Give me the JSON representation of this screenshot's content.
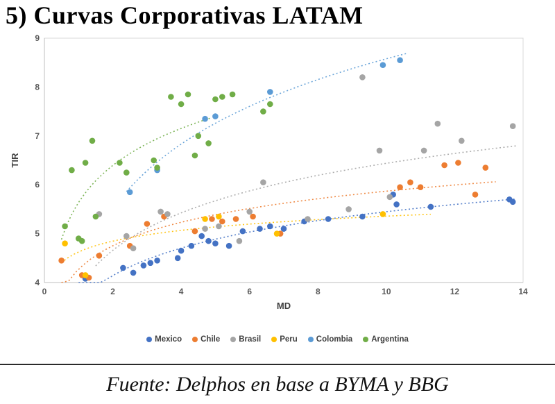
{
  "title": "5) Curvas Corporativas LATAM",
  "footer": "Fuente: Delphos en base a BYMA y BBG",
  "chart_data": {
    "type": "scatter",
    "title": "5) Curvas Corporativas LATAM",
    "xlabel": "MD",
    "ylabel": "TIR",
    "xlim": [
      0,
      14
    ],
    "ylim": [
      4,
      9
    ],
    "x_ticks": [
      0,
      2,
      4,
      6,
      8,
      10,
      12,
      14
    ],
    "y_ticks": [
      4,
      5,
      6,
      7,
      8,
      9
    ],
    "grid": false,
    "legend_position": "bottom",
    "trendlines": "logarithmic-dotted-per-series",
    "series": [
      {
        "name": "Mexico",
        "color": "#4472C4",
        "trend_range": [
          1.0,
          13.8
        ],
        "points": [
          [
            1.2,
            4.08
          ],
          [
            2.3,
            4.3
          ],
          [
            2.6,
            4.2
          ],
          [
            2.9,
            4.35
          ],
          [
            3.1,
            4.4
          ],
          [
            3.3,
            4.45
          ],
          [
            3.9,
            4.5
          ],
          [
            4.0,
            4.65
          ],
          [
            4.3,
            4.75
          ],
          [
            4.6,
            4.95
          ],
          [
            4.8,
            4.85
          ],
          [
            5.0,
            4.8
          ],
          [
            5.4,
            4.75
          ],
          [
            5.8,
            5.05
          ],
          [
            6.3,
            5.1
          ],
          [
            6.6,
            5.15
          ],
          [
            7.0,
            5.1
          ],
          [
            7.6,
            5.25
          ],
          [
            8.3,
            5.3
          ],
          [
            9.3,
            5.35
          ],
          [
            10.2,
            5.8
          ],
          [
            10.3,
            5.6
          ],
          [
            11.3,
            5.55
          ],
          [
            13.6,
            5.7
          ],
          [
            13.7,
            5.65
          ]
        ]
      },
      {
        "name": "Chile",
        "color": "#ED7D31",
        "trend_range": [
          0.5,
          13.2
        ],
        "points": [
          [
            0.5,
            4.45
          ],
          [
            1.1,
            4.15
          ],
          [
            1.3,
            4.1
          ],
          [
            1.6,
            4.55
          ],
          [
            2.5,
            4.75
          ],
          [
            3.0,
            5.2
          ],
          [
            3.5,
            5.35
          ],
          [
            4.4,
            5.05
          ],
          [
            4.9,
            5.3
          ],
          [
            5.2,
            5.25
          ],
          [
            5.6,
            5.3
          ],
          [
            6.1,
            5.35
          ],
          [
            6.9,
            5.0
          ],
          [
            10.4,
            5.95
          ],
          [
            10.7,
            6.05
          ],
          [
            11.0,
            5.95
          ],
          [
            11.7,
            6.4
          ],
          [
            12.1,
            6.45
          ],
          [
            12.6,
            5.8
          ],
          [
            12.9,
            6.35
          ]
        ]
      },
      {
        "name": "Brasil",
        "color": "#A5A5A5",
        "trend_range": [
          1.5,
          13.8
        ],
        "points": [
          [
            1.6,
            5.4
          ],
          [
            2.4,
            4.95
          ],
          [
            2.6,
            4.7
          ],
          [
            3.4,
            5.45
          ],
          [
            3.6,
            5.4
          ],
          [
            4.7,
            5.1
          ],
          [
            5.1,
            5.15
          ],
          [
            5.7,
            4.85
          ],
          [
            6.0,
            5.45
          ],
          [
            6.4,
            6.05
          ],
          [
            7.7,
            5.3
          ],
          [
            8.9,
            5.5
          ],
          [
            9.3,
            8.2
          ],
          [
            9.8,
            6.7
          ],
          [
            10.1,
            5.75
          ],
          [
            11.1,
            6.7
          ],
          [
            11.5,
            7.25
          ],
          [
            12.2,
            6.9
          ],
          [
            13.7,
            7.2
          ]
        ]
      },
      {
        "name": "Peru",
        "color": "#FFC000",
        "trend_range": [
          0.5,
          11.3
        ],
        "points": [
          [
            0.6,
            4.8
          ],
          [
            1.2,
            4.15
          ],
          [
            4.7,
            5.3
          ],
          [
            5.1,
            5.35
          ],
          [
            6.8,
            5.0
          ],
          [
            9.9,
            5.4
          ]
        ]
      },
      {
        "name": "Colombia",
        "color": "#5B9BD5",
        "trend_range": [
          2.4,
          10.6
        ],
        "points": [
          [
            2.5,
            5.85
          ],
          [
            3.3,
            6.3
          ],
          [
            4.7,
            7.35
          ],
          [
            5.0,
            7.4
          ],
          [
            6.6,
            7.9
          ],
          [
            9.9,
            8.45
          ],
          [
            10.4,
            8.55
          ]
        ]
      },
      {
        "name": "Argentina",
        "color": "#70AD47",
        "trend_range": [
          0.5,
          4.9
        ],
        "points": [
          [
            0.6,
            5.15
          ],
          [
            0.8,
            6.3
          ],
          [
            1.0,
            4.9
          ],
          [
            1.1,
            4.85
          ],
          [
            1.2,
            6.45
          ],
          [
            1.4,
            6.9
          ],
          [
            1.5,
            5.35
          ],
          [
            2.2,
            6.45
          ],
          [
            2.4,
            6.25
          ],
          [
            3.2,
            6.5
          ],
          [
            3.3,
            6.35
          ],
          [
            3.7,
            7.8
          ],
          [
            4.0,
            7.65
          ],
          [
            4.2,
            7.85
          ],
          [
            4.4,
            6.6
          ],
          [
            4.5,
            7.0
          ],
          [
            4.8,
            6.85
          ],
          [
            5.0,
            7.75
          ],
          [
            5.2,
            7.8
          ],
          [
            5.5,
            7.85
          ],
          [
            6.4,
            7.5
          ],
          [
            6.6,
            7.65
          ]
        ]
      }
    ]
  }
}
